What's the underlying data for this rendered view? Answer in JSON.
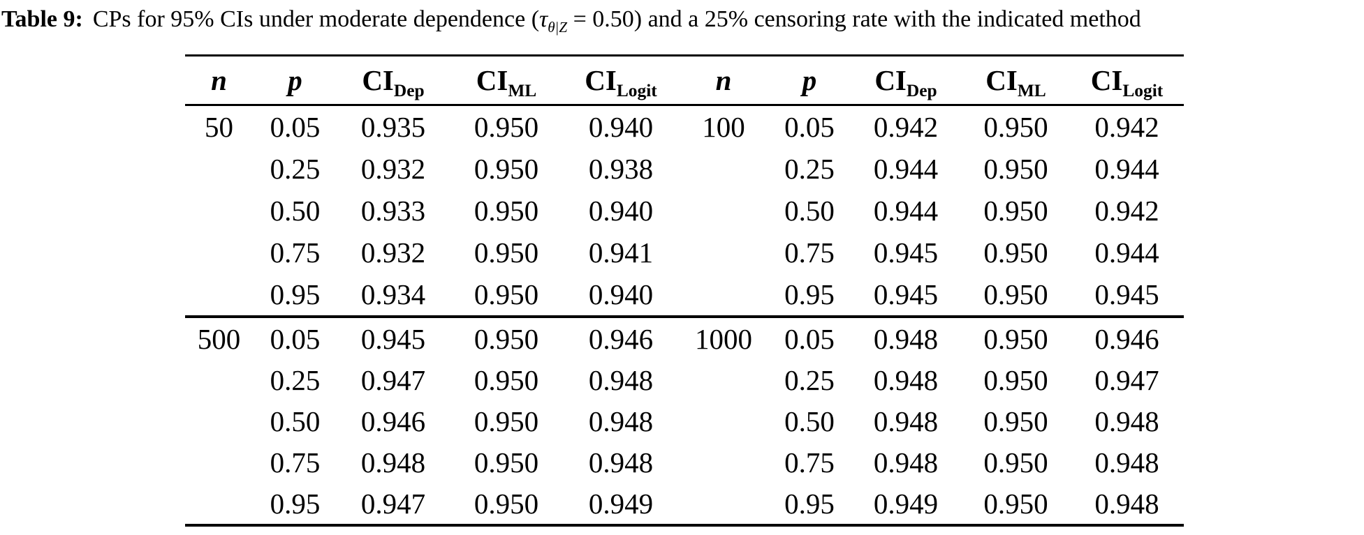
{
  "page": {
    "background_color": "#ffffff",
    "text_color": "#000000"
  },
  "title": {
    "label": "Table 9:",
    "pre": "CPs for 95% CIs under moderate dependence (",
    "tau": "τ",
    "tau_subscript": "θ|Z",
    "post": " = 0.50) and a 25% censoring rate with the indicated method"
  },
  "table": {
    "columns": [
      {
        "label": "n",
        "sub": ""
      },
      {
        "label": "p",
        "sub": ""
      },
      {
        "label": "CI",
        "sub": "Dep"
      },
      {
        "label": "CI",
        "sub": "ML"
      },
      {
        "label": "CI",
        "sub": "Logit"
      },
      {
        "label": "n",
        "sub": ""
      },
      {
        "label": "p",
        "sub": ""
      },
      {
        "label": "CI",
        "sub": "Dep"
      },
      {
        "label": "CI",
        "sub": "ML"
      },
      {
        "label": "CI",
        "sub": "Logit"
      }
    ],
    "sections": [
      {
        "rows": [
          [
            "50",
            "0.05",
            "0.935",
            "0.950",
            "0.940",
            "100",
            "0.05",
            "0.942",
            "0.950",
            "0.942"
          ],
          [
            "",
            "0.25",
            "0.932",
            "0.950",
            "0.938",
            "",
            "0.25",
            "0.944",
            "0.950",
            "0.944"
          ],
          [
            "",
            "0.50",
            "0.933",
            "0.950",
            "0.940",
            "",
            "0.50",
            "0.944",
            "0.950",
            "0.942"
          ],
          [
            "",
            "0.75",
            "0.932",
            "0.950",
            "0.941",
            "",
            "0.75",
            "0.945",
            "0.950",
            "0.944"
          ],
          [
            "",
            "0.95",
            "0.934",
            "0.950",
            "0.940",
            "",
            "0.95",
            "0.945",
            "0.950",
            "0.945"
          ]
        ]
      },
      {
        "rows": [
          [
            "500",
            "0.05",
            "0.945",
            "0.950",
            "0.946",
            "1000",
            "0.05",
            "0.948",
            "0.950",
            "0.946"
          ],
          [
            "",
            "0.25",
            "0.947",
            "0.950",
            "0.948",
            "",
            "0.25",
            "0.948",
            "0.950",
            "0.947"
          ],
          [
            "",
            "0.50",
            "0.946",
            "0.950",
            "0.948",
            "",
            "0.50",
            "0.948",
            "0.950",
            "0.948"
          ],
          [
            "",
            "0.75",
            "0.948",
            "0.950",
            "0.948",
            "",
            "0.75",
            "0.948",
            "0.950",
            "0.948"
          ],
          [
            "",
            "0.95",
            "0.947",
            "0.950",
            "0.949",
            "",
            "0.95",
            "0.949",
            "0.950",
            "0.948"
          ]
        ]
      }
    ]
  }
}
